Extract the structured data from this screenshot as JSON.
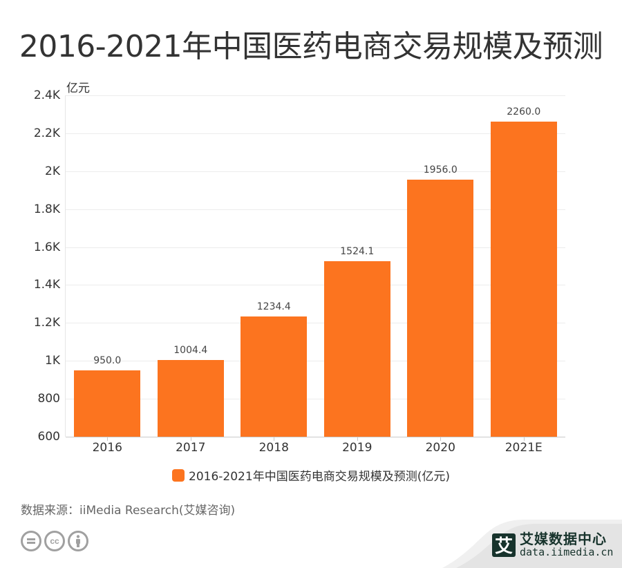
{
  "title": "2016-2021年中国医药电商交易规模及预测",
  "unit_label": "亿元",
  "legend": {
    "label": "2016-2021年中国医药电商交易规模及预测(亿元)",
    "color": "#fc741f"
  },
  "source": "数据来源：iiMedia Research(艾媒咨询)",
  "license_icons": [
    "equals-icon",
    "cc-icon",
    "attribution-person-icon"
  ],
  "brand": {
    "mark": "艾",
    "name_cn": "艾媒数据中心",
    "url": "data.iimedia.cn"
  },
  "chart_data": {
    "type": "bar",
    "title": "2016-2021年中国医药电商交易规模及预测",
    "xlabel": "",
    "ylabel": "亿元",
    "categories": [
      "2016",
      "2017",
      "2018",
      "2019",
      "2020",
      "2021E"
    ],
    "series": [
      {
        "name": "2016-2021年中国医药电商交易规模及预测(亿元)",
        "values": [
          950.0,
          1004.4,
          1234.4,
          1524.1,
          1956.0,
          2260.0
        ],
        "color": "#fc741f"
      }
    ],
    "value_labels": [
      "950.0",
      "1004.4",
      "1234.4",
      "1524.1",
      "1956.0",
      "2260.0"
    ],
    "ylim": [
      600,
      2400
    ],
    "yticks": [
      600,
      800,
      1000,
      1200,
      1400,
      1600,
      1800,
      2000,
      2200,
      2400
    ],
    "ytick_labels": [
      "600",
      "800",
      "1K",
      "1.2K",
      "1.4K",
      "1.6K",
      "1.8K",
      "2K",
      "2.2K",
      "2.4K"
    ],
    "grid": true,
    "legend_position": "bottom"
  }
}
